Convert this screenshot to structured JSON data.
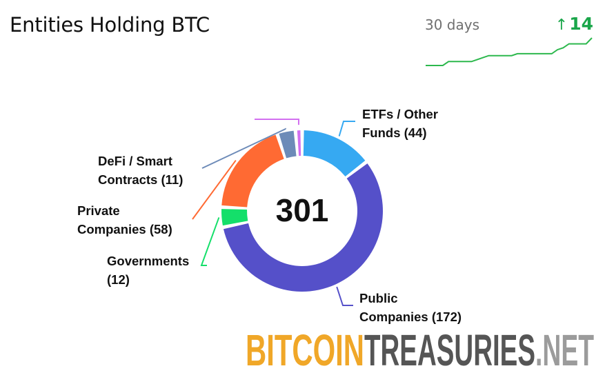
{
  "header": {
    "title": "Entities Holding BTC",
    "period": "30 days",
    "change": "14",
    "change_arrow": "↑"
  },
  "colors": {
    "change_green": "#1aa64a",
    "spark_green": "#2cb84d",
    "logo_gold": "#f0a728",
    "logo_gray": "#555555",
    "logo_light": "#9b9b9b"
  },
  "sparkline": {
    "values": [
      287,
      287,
      287,
      287,
      289,
      289,
      289,
      289,
      289,
      290,
      291,
      292,
      292,
      292,
      292,
      292,
      293,
      293,
      293,
      293,
      293,
      293,
      293,
      295,
      296,
      298,
      298,
      298,
      298,
      301
    ]
  },
  "chart_data": {
    "type": "pie",
    "total": "301",
    "series": [
      {
        "name": "ETFs / Other Funds",
        "value": 44,
        "label_lines": [
          "ETFs / Other",
          "Funds (44)"
        ],
        "color": "#36a9f2"
      },
      {
        "name": "Public Companies",
        "value": 172,
        "label_lines": [
          "Public",
          "Companies (172)"
        ],
        "color": "#5550c9"
      },
      {
        "name": "Governments",
        "value": 12,
        "label_lines": [
          "Governments",
          "(12)"
        ],
        "color": "#14df6a"
      },
      {
        "name": "Private Companies",
        "value": 58,
        "label_lines": [
          "Private",
          "Companies (58)"
        ],
        "color": "#ff6a33"
      },
      {
        "name": "DeFi / Smart Contracts",
        "value": 11,
        "label_lines": [
          "DeFi / Smart",
          "Contracts (11)"
        ],
        "color": "#6d8bb8"
      },
      {
        "name": "",
        "value": 4,
        "label_lines": [],
        "color": "#d26ff0"
      }
    ]
  },
  "logo": {
    "part1": "BITCOIN",
    "part2": "TREASURIES",
    "part3": ".NET"
  }
}
